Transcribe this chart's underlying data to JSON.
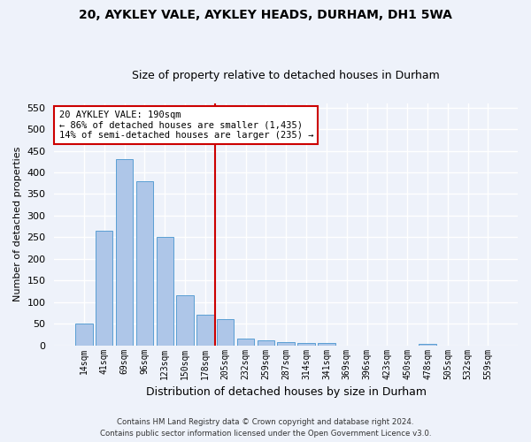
{
  "title1": "20, AYKLEY VALE, AYKLEY HEADS, DURHAM, DH1 5WA",
  "title2": "Size of property relative to detached houses in Durham",
  "xlabel": "Distribution of detached houses by size in Durham",
  "ylabel": "Number of detached properties",
  "categories": [
    "14sqm",
    "41sqm",
    "69sqm",
    "96sqm",
    "123sqm",
    "150sqm",
    "178sqm",
    "205sqm",
    "232sqm",
    "259sqm",
    "287sqm",
    "314sqm",
    "341sqm",
    "369sqm",
    "396sqm",
    "423sqm",
    "450sqm",
    "478sqm",
    "505sqm",
    "532sqm",
    "559sqm"
  ],
  "values": [
    50,
    265,
    430,
    380,
    250,
    115,
    70,
    60,
    15,
    12,
    8,
    5,
    5,
    0,
    0,
    0,
    0,
    3,
    0,
    0,
    0
  ],
  "bar_color": "#aec6e8",
  "bar_edge_color": "#5a9fd4",
  "vline_x_index": 6.5,
  "vline_color": "#cc0000",
  "annotation_line1": "20 AYKLEY VALE: 190sqm",
  "annotation_line2": "← 86% of detached houses are smaller (1,435)",
  "annotation_line3": "14% of semi-detached houses are larger (235) →",
  "annotation_box_color": "#ffffff",
  "annotation_box_edge_color": "#cc0000",
  "ylim": [
    0,
    560
  ],
  "yticks": [
    0,
    50,
    100,
    150,
    200,
    250,
    300,
    350,
    400,
    450,
    500,
    550
  ],
  "footer1": "Contains HM Land Registry data © Crown copyright and database right 2024.",
  "footer2": "Contains public sector information licensed under the Open Government Licence v3.0.",
  "bg_color": "#eef2fa",
  "plot_bg_color": "#eef2fa",
  "grid_color": "#ffffff",
  "title1_fontsize": 10,
  "title2_fontsize": 9
}
